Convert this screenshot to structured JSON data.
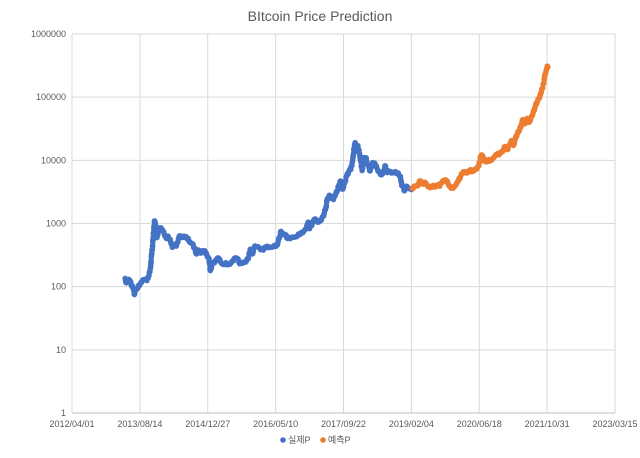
{
  "chart_data": {
    "type": "scatter",
    "title": "BItcoin Price Prediction",
    "xlabel": "",
    "ylabel": "",
    "yscale": "log",
    "ylim": [
      1,
      1000000
    ],
    "xlim": [
      "2012-04-01",
      "2023-03-15"
    ],
    "grid": true,
    "legend_position": "bottom",
    "y_ticks": [
      "1",
      "10",
      "100",
      "1000",
      "10000",
      "100000",
      "1000000"
    ],
    "x_ticks": [
      "2012/04/01",
      "2013/08/14",
      "2014/12/27",
      "2016/05/10",
      "2017/09/22",
      "2019/02/04",
      "2020/06/18",
      "2021/10/31",
      "2023/03/15"
    ],
    "series": [
      {
        "name": "실제P",
        "color": "#4472C4",
        "points": [
          [
            "2013-04-28",
            135
          ],
          [
            "2013-05-05",
            115
          ],
          [
            "2013-05-15",
            118
          ],
          [
            "2013-05-25",
            130
          ],
          [
            "2013-06-05",
            120
          ],
          [
            "2013-06-15",
            102
          ],
          [
            "2013-06-25",
            95
          ],
          [
            "2013-07-05",
            75
          ],
          [
            "2013-07-15",
            90
          ],
          [
            "2013-07-25",
            95
          ],
          [
            "2013-08-05",
            105
          ],
          [
            "2013-08-20",
            115
          ],
          [
            "2013-09-05",
            128
          ],
          [
            "2013-09-20",
            130
          ],
          [
            "2013-10-05",
            125
          ],
          [
            "2013-10-20",
            150
          ],
          [
            "2013-11-01",
            205
          ],
          [
            "2013-11-08",
            320
          ],
          [
            "2013-11-15",
            430
          ],
          [
            "2013-11-22",
            700
          ],
          [
            "2013-11-30",
            1100
          ],
          [
            "2013-12-04",
            1050
          ],
          [
            "2013-12-10",
            900
          ],
          [
            "2013-12-18",
            600
          ],
          [
            "2013-12-28",
            730
          ],
          [
            "2014-01-10",
            850
          ],
          [
            "2014-01-25",
            800
          ],
          [
            "2014-02-10",
            680
          ],
          [
            "2014-02-25",
            580
          ],
          [
            "2014-03-10",
            630
          ],
          [
            "2014-03-25",
            560
          ],
          [
            "2014-04-10",
            420
          ],
          [
            "2014-04-25",
            450
          ],
          [
            "2014-05-10",
            440
          ],
          [
            "2014-05-25",
            570
          ],
          [
            "2014-06-05",
            640
          ],
          [
            "2014-06-20",
            600
          ],
          [
            "2014-07-05",
            630
          ],
          [
            "2014-07-20",
            620
          ],
          [
            "2014-08-05",
            580
          ],
          [
            "2014-08-20",
            500
          ],
          [
            "2014-09-05",
            480
          ],
          [
            "2014-09-20",
            410
          ],
          [
            "2014-10-05",
            330
          ],
          [
            "2014-10-20",
            380
          ],
          [
            "2014-11-05",
            340
          ],
          [
            "2014-11-20",
            370
          ],
          [
            "2014-12-05",
            370
          ],
          [
            "2014-12-20",
            320
          ],
          [
            "2015-01-05",
            280
          ],
          [
            "2015-01-15",
            180
          ],
          [
            "2015-01-30",
            230
          ],
          [
            "2015-02-15",
            240
          ],
          [
            "2015-03-01",
            260
          ],
          [
            "2015-03-15",
            285
          ],
          [
            "2015-04-01",
            245
          ],
          [
            "2015-04-20",
            225
          ],
          [
            "2015-05-10",
            240
          ],
          [
            "2015-06-01",
            225
          ],
          [
            "2015-06-20",
            245
          ],
          [
            "2015-07-10",
            280
          ],
          [
            "2015-08-01",
            280
          ],
          [
            "2015-08-20",
            230
          ],
          [
            "2015-09-10",
            235
          ],
          [
            "2015-10-01",
            245
          ],
          [
            "2015-10-20",
            275
          ],
          [
            "2015-11-05",
            390
          ],
          [
            "2015-11-20",
            330
          ],
          [
            "2015-12-10",
            440
          ],
          [
            "2016-01-01",
            430
          ],
          [
            "2016-01-20",
            385
          ],
          [
            "2016-02-10",
            380
          ],
          [
            "2016-03-01",
            430
          ],
          [
            "2016-03-20",
            415
          ],
          [
            "2016-04-10",
            420
          ],
          [
            "2016-05-01",
            450
          ],
          [
            "2016-05-20",
            455
          ],
          [
            "2016-06-05",
            580
          ],
          [
            "2016-06-18",
            750
          ],
          [
            "2016-07-01",
            670
          ],
          [
            "2016-07-20",
            660
          ],
          [
            "2016-08-05",
            580
          ],
          [
            "2016-08-25",
            575
          ],
          [
            "2016-09-15",
            610
          ],
          [
            "2016-10-05",
            615
          ],
          [
            "2016-10-25",
            680
          ],
          [
            "2016-11-15",
            720
          ],
          [
            "2016-12-05",
            760
          ],
          [
            "2016-12-25",
            900
          ],
          [
            "2017-01-05",
            1050
          ],
          [
            "2017-01-15",
            830
          ],
          [
            "2017-02-05",
            1020
          ],
          [
            "2017-02-25",
            1180
          ],
          [
            "2017-03-15",
            1050
          ],
          [
            "2017-04-05",
            1120
          ],
          [
            "2017-04-25",
            1300
          ],
          [
            "2017-05-15",
            1750
          ],
          [
            "2017-05-25",
            2400
          ],
          [
            "2017-06-10",
            2800
          ],
          [
            "2017-06-25",
            2500
          ],
          [
            "2017-07-10",
            2400
          ],
          [
            "2017-07-20",
            2700
          ],
          [
            "2017-08-05",
            3200
          ],
          [
            "2017-08-20",
            4100
          ],
          [
            "2017-09-01",
            4700
          ],
          [
            "2017-09-15",
            3500
          ],
          [
            "2017-10-01",
            4400
          ],
          [
            "2017-10-15",
            5700
          ],
          [
            "2017-11-01",
            6700
          ],
          [
            "2017-11-15",
            7200
          ],
          [
            "2017-11-28",
            9800
          ],
          [
            "2017-12-08",
            15000
          ],
          [
            "2017-12-17",
            19000
          ],
          [
            "2017-12-25",
            14000
          ],
          [
            "2018-01-06",
            17000
          ],
          [
            "2018-01-20",
            12000
          ],
          [
            "2018-02-06",
            6900
          ],
          [
            "2018-02-20",
            11000
          ],
          [
            "2018-03-05",
            11000
          ],
          [
            "2018-03-20",
            8500
          ],
          [
            "2018-04-06",
            6800
          ],
          [
            "2018-04-25",
            9200
          ],
          [
            "2018-05-10",
            9000
          ],
          [
            "2018-05-28",
            7400
          ],
          [
            "2018-06-15",
            6400
          ],
          [
            "2018-06-28",
            5900
          ],
          [
            "2018-07-15",
            6400
          ],
          [
            "2018-07-25",
            8200
          ],
          [
            "2018-08-10",
            6400
          ],
          [
            "2018-08-25",
            6700
          ],
          [
            "2018-09-10",
            6300
          ],
          [
            "2018-09-25",
            6500
          ],
          [
            "2018-10-10",
            6600
          ],
          [
            "2018-10-30",
            6300
          ],
          [
            "2018-11-15",
            5600
          ],
          [
            "2018-11-25",
            4000
          ],
          [
            "2018-12-05",
            3800
          ],
          [
            "2018-12-15",
            3300
          ],
          [
            "2018-12-25",
            3900
          ],
          [
            "2019-01-10",
            3600
          ],
          [
            "2019-01-25",
            3550
          ],
          [
            "2019-02-04",
            3450
          ]
        ]
      },
      {
        "name": "예측P",
        "color": "#ED7D31",
        "points": [
          [
            "2019-02-10",
            3600
          ],
          [
            "2019-02-25",
            3900
          ],
          [
            "2019-03-10",
            3950
          ],
          [
            "2019-03-25",
            4000
          ],
          [
            "2019-04-05",
            4700
          ],
          [
            "2019-04-20",
            4400
          ],
          [
            "2019-05-01",
            4200
          ],
          [
            "2019-05-15",
            4500
          ],
          [
            "2019-06-01",
            4000
          ],
          [
            "2019-06-15",
            3800
          ],
          [
            "2019-07-01",
            3900
          ],
          [
            "2019-07-15",
            4000
          ],
          [
            "2019-08-01",
            3800
          ],
          [
            "2019-08-15",
            4100
          ],
          [
            "2019-09-01",
            3900
          ],
          [
            "2019-09-15",
            4400
          ],
          [
            "2019-10-01",
            4700
          ],
          [
            "2019-10-15",
            4900
          ],
          [
            "2019-11-01",
            4300
          ],
          [
            "2019-11-15",
            3900
          ],
          [
            "2019-12-01",
            3700
          ],
          [
            "2019-12-15",
            3800
          ],
          [
            "2020-01-01",
            4200
          ],
          [
            "2020-01-15",
            4700
          ],
          [
            "2020-02-01",
            5500
          ],
          [
            "2020-02-15",
            6200
          ],
          [
            "2020-03-01",
            6600
          ],
          [
            "2020-03-15",
            6300
          ],
          [
            "2020-04-01",
            6800
          ],
          [
            "2020-04-15",
            7100
          ],
          [
            "2020-05-01",
            6700
          ],
          [
            "2020-05-15",
            7200
          ],
          [
            "2020-06-01",
            7300
          ],
          [
            "2020-06-15",
            8200
          ],
          [
            "2020-06-28",
            11500
          ],
          [
            "2020-07-10",
            12000
          ],
          [
            "2020-07-25",
            9800
          ],
          [
            "2020-08-10",
            9500
          ],
          [
            "2020-08-25",
            10300
          ],
          [
            "2020-09-10",
            10100
          ],
          [
            "2020-09-25",
            10700
          ],
          [
            "2020-10-10",
            11500
          ],
          [
            "2020-10-25",
            12500
          ],
          [
            "2020-11-10",
            12200
          ],
          [
            "2020-11-25",
            13200
          ],
          [
            "2020-12-10",
            14000
          ],
          [
            "2020-12-25",
            16500
          ],
          [
            "2021-01-10",
            14800
          ],
          [
            "2021-01-25",
            17500
          ],
          [
            "2021-02-10",
            20500
          ],
          [
            "2021-02-25",
            17200
          ],
          [
            "2021-03-10",
            22000
          ],
          [
            "2021-03-25",
            26000
          ],
          [
            "2021-04-10",
            30000
          ],
          [
            "2021-04-25",
            37000
          ],
          [
            "2021-05-05",
            44000
          ],
          [
            "2021-05-20",
            38000
          ],
          [
            "2021-06-05",
            46000
          ],
          [
            "2021-06-20",
            40000
          ],
          [
            "2021-07-05",
            48000
          ],
          [
            "2021-07-20",
            57000
          ],
          [
            "2021-08-05",
            72000
          ],
          [
            "2021-08-20",
            85000
          ],
          [
            "2021-09-05",
            98000
          ],
          [
            "2021-09-15",
            115000
          ],
          [
            "2021-09-25",
            135000
          ],
          [
            "2021-10-05",
            165000
          ],
          [
            "2021-10-15",
            230000
          ],
          [
            "2021-10-25",
            270000
          ],
          [
            "2021-11-01",
            310000
          ],
          [
            "2021-11-05",
            300000
          ]
        ]
      }
    ]
  }
}
